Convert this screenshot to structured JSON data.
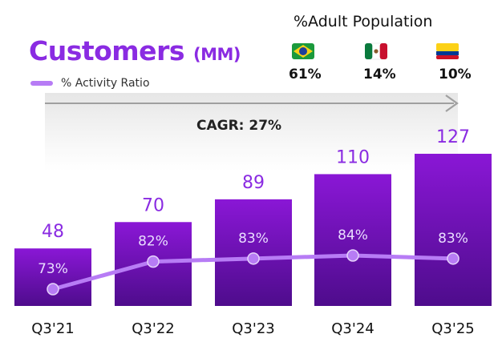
{
  "header": {
    "title": "Customers",
    "title_unit": "(MM)",
    "legend_label": "% Activity Ratio"
  },
  "adult_population": {
    "title": "%Adult Population",
    "countries": [
      {
        "icon": "brazil-flag-icon",
        "value": "61%"
      },
      {
        "icon": "mexico-flag-icon",
        "value": "14%"
      },
      {
        "icon": "colombia-flag-icon",
        "value": "10%"
      }
    ]
  },
  "cagr": {
    "label": "CAGR: 27%"
  },
  "colors": {
    "accent": "#8a2be2",
    "bar_top": "#8a17d6",
    "bar_bottom": "#4e0c8c",
    "line": "#b77cf5",
    "value_label": "#8a2be2"
  },
  "chart_data": {
    "type": "bar",
    "categories": [
      "Q3'21",
      "Q3'22",
      "Q3'23",
      "Q3'24",
      "Q3'25"
    ],
    "series": [
      {
        "name": "Customers (MM)",
        "values": [
          48,
          70,
          89,
          110,
          127
        ]
      },
      {
        "name": "% Activity Ratio",
        "values": [
          73,
          82,
          83,
          84,
          83
        ]
      }
    ],
    "value_labels": [
      "48",
      "70",
      "89",
      "110",
      "127"
    ],
    "ratio_labels": [
      "73%",
      "82%",
      "83%",
      "84%",
      "83%"
    ],
    "title": "Customers (MM)",
    "annotation": "CAGR: 27%",
    "ylim": [
      0,
      127
    ],
    "ratio_ylim": [
      60,
      100
    ],
    "grid": false,
    "legend": "top-left"
  }
}
